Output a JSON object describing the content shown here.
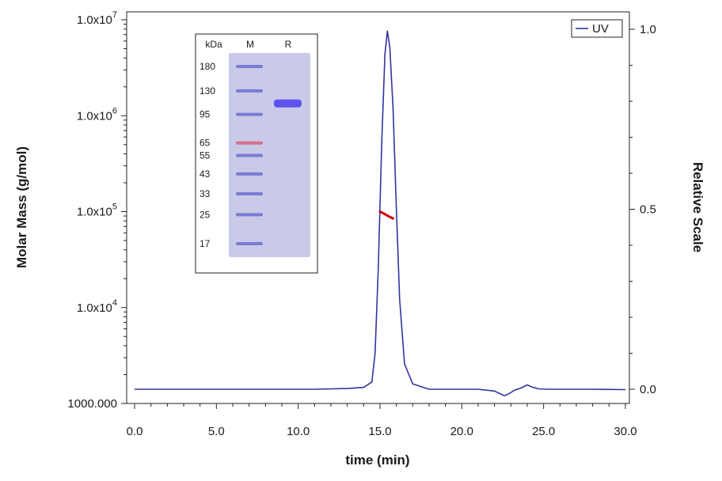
{
  "chart_data": {
    "type": "line",
    "xlabel": "time (min)",
    "ylabel_left": "Molar Mass (g/mol)",
    "ylabel_right": "Relative Scale",
    "xlim": [
      0,
      30
    ],
    "x_ticks": [
      "0.0",
      "5.0",
      "10.0",
      "15.0",
      "20.0",
      "25.0",
      "30.0"
    ],
    "y_left_scale": "log",
    "y_left_lim": [
      1000,
      10000000
    ],
    "y_left_ticks": [
      {
        "mantissa": "1000.000",
        "exp": ""
      },
      {
        "mantissa": "1.0x10",
        "exp": "4"
      },
      {
        "mantissa": "1.0x10",
        "exp": "5"
      },
      {
        "mantissa": "1.0x10",
        "exp": "6"
      },
      {
        "mantissa": "1.0x10",
        "exp": "7"
      }
    ],
    "y_right_lim": [
      -0.02,
      1.04
    ],
    "y_right_ticks": [
      "0.0",
      "0.5",
      "1.0"
    ],
    "legend": {
      "entries": [
        "UV"
      ],
      "placement": "top-right"
    },
    "series": [
      {
        "name": "UV",
        "color": "#33339e",
        "x": [
          0,
          5,
          10,
          11,
          13,
          14,
          14.5,
          14.7,
          14.9,
          15.1,
          15.3,
          15.45,
          15.6,
          15.8,
          16.0,
          16.2,
          16.5,
          17,
          18,
          19,
          20,
          21,
          22,
          22.6,
          22.9,
          23.2,
          23.6,
          24.0,
          24.3,
          24.7,
          25.2,
          26,
          28,
          30
        ],
        "y": [
          0.0,
          0.0,
          0.0,
          0.0,
          0.002,
          0.005,
          0.02,
          0.1,
          0.34,
          0.68,
          0.93,
          0.995,
          0.95,
          0.78,
          0.5,
          0.25,
          0.07,
          0.015,
          0.0,
          0.0,
          0.0,
          0.0,
          -0.005,
          -0.018,
          -0.012,
          -0.003,
          0.003,
          0.012,
          0.006,
          0.001,
          0.0,
          0.0,
          0.0,
          -0.001
        ]
      },
      {
        "name": "Molar Mass",
        "color": "#cc0000",
        "x": [
          15.0,
          15.2,
          15.4,
          15.6,
          15.8
        ],
        "y_molar_mass": [
          100000,
          96000,
          92000,
          88000,
          85000
        ]
      }
    ]
  },
  "gel": {
    "header_kda": "kDa",
    "header_marker": "M",
    "header_sample": "R",
    "marker_bands": [
      {
        "label": "180",
        "kda": 180
      },
      {
        "label": "130",
        "kda": 130
      },
      {
        "label": "95",
        "kda": 95
      },
      {
        "label": "65",
        "kda": 65
      },
      {
        "label": "55",
        "kda": 55
      },
      {
        "label": "43",
        "kda": 43
      },
      {
        "label": "33",
        "kda": 33
      },
      {
        "label": "25",
        "kda": 25
      },
      {
        "label": "17",
        "kda": 17
      }
    ],
    "sample_band_kda": 110,
    "lane_color": "#c9c9e8",
    "band_color": "#6a6fcf",
    "highlight_band_color": "#d9607a",
    "sample_band_color": "#4a3df0"
  }
}
